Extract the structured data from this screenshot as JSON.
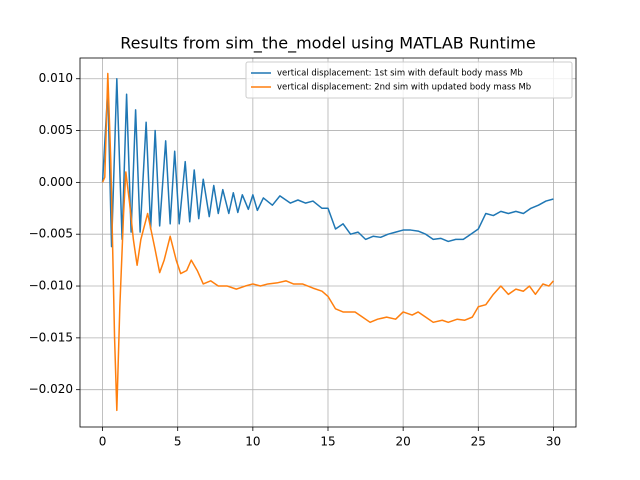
{
  "chart_data": {
    "type": "line",
    "title": "Results from sim_the_model using MATLAB Runtime",
    "xlim": [
      -1.5,
      31.5
    ],
    "xticks": [
      0,
      5,
      10,
      15,
      20,
      25,
      30
    ],
    "ylim": [
      -0.0236,
      0.012
    ],
    "yticks": [
      {
        "value": -0.02,
        "label": "−0.020"
      },
      {
        "value": -0.015,
        "label": "−0.015"
      },
      {
        "value": -0.01,
        "label": "−0.010"
      },
      {
        "value": -0.005,
        "label": "−0.005"
      },
      {
        "value": 0,
        "label": "0.000"
      },
      {
        "value": 0.005,
        "label": "0.005"
      },
      {
        "value": 0.01,
        "label": "0.010"
      }
    ],
    "grid": true,
    "legend": "upper right",
    "series": [
      {
        "name": "vertical displacement: 1st sim with default body mass Mb",
        "color": "#1f77b4",
        "x": [
          0,
          0.35,
          0.6,
          0.95,
          1.3,
          1.6,
          1.9,
          2.2,
          2.5,
          2.9,
          3.2,
          3.5,
          3.8,
          4.2,
          4.5,
          4.8,
          5.1,
          5.5,
          5.8,
          6.1,
          6.4,
          6.7,
          7.1,
          7.4,
          7.7,
          8.0,
          8.4,
          8.7,
          9.0,
          9.3,
          9.7,
          10.0,
          10.3,
          10.7,
          11.3,
          11.8,
          12.5,
          13,
          13.5,
          14,
          14.6,
          15,
          15.5,
          16,
          16.5,
          17,
          17.5,
          18,
          18.5,
          19,
          19.5,
          20,
          20.5,
          21,
          21.5,
          22,
          22.5,
          23,
          23.5,
          24,
          24.5,
          25,
          25.5,
          26,
          26.5,
          27,
          27.5,
          28,
          28.5,
          29,
          29.5,
          30
        ],
        "values": [
          0,
          0.009,
          -0.0062,
          0.01,
          -0.0055,
          0.0085,
          -0.0048,
          0.007,
          -0.0048,
          0.0058,
          -0.0045,
          0.005,
          -0.0042,
          0.004,
          -0.004,
          0.003,
          -0.004,
          0.002,
          -0.0038,
          0.0012,
          -0.0035,
          0.0003,
          -0.0033,
          -0.0003,
          -0.003,
          -0.0007,
          -0.003,
          -0.001,
          -0.0029,
          -0.0012,
          -0.0026,
          -0.0012,
          -0.0027,
          -0.0015,
          -0.0022,
          -0.0013,
          -0.002,
          -0.0017,
          -0.002,
          -0.0018,
          -0.0025,
          -0.0025,
          -0.0045,
          -0.004,
          -0.005,
          -0.0048,
          -0.0055,
          -0.0052,
          -0.0053,
          -0.005,
          -0.0048,
          -0.0046,
          -0.0046,
          -0.0047,
          -0.005,
          -0.0055,
          -0.0054,
          -0.0057,
          -0.0055,
          -0.0055,
          -0.005,
          -0.0045,
          -0.003,
          -0.0032,
          -0.0028,
          -0.003,
          -0.0028,
          -0.003,
          -0.0025,
          -0.0022,
          -0.0018,
          -0.0016
        ]
      },
      {
        "name": "vertical displacement: 2nd sim with updated body mass Mb",
        "color": "#ff7f0e",
        "x": [
          0,
          0.15,
          0.35,
          0.55,
          0.8,
          0.95,
          1.15,
          1.4,
          1.55,
          1.8,
          2.05,
          2.3,
          2.55,
          3.0,
          3.5,
          3.8,
          4.1,
          4.5,
          4.9,
          5.2,
          5.6,
          5.9,
          6.3,
          6.7,
          7.2,
          7.7,
          8.3,
          8.9,
          9.5,
          10,
          10.5,
          11,
          11.6,
          12.2,
          12.7,
          13.3,
          14,
          14.6,
          15,
          15.5,
          16,
          16.8,
          17.3,
          17.8,
          18.3,
          18.9,
          19.5,
          20,
          20.6,
          21,
          21.5,
          22,
          22.6,
          23,
          23.6,
          24.1,
          24.6,
          25,
          25.5,
          26,
          26.5,
          27,
          27.5,
          28,
          28.4,
          28.8,
          29.3,
          29.7,
          30
        ],
        "values": [
          0,
          0.0005,
          0.0105,
          0.002,
          -0.015,
          -0.022,
          -0.012,
          -0.003,
          0.001,
          -0.002,
          -0.0055,
          -0.008,
          -0.0055,
          -0.003,
          -0.0065,
          -0.0087,
          -0.0075,
          -0.0052,
          -0.0075,
          -0.0088,
          -0.0085,
          -0.0075,
          -0.0085,
          -0.0098,
          -0.0095,
          -0.01,
          -0.01,
          -0.0103,
          -0.01,
          -0.0098,
          -0.01,
          -0.0098,
          -0.0097,
          -0.0095,
          -0.0098,
          -0.0098,
          -0.0102,
          -0.0105,
          -0.011,
          -0.0122,
          -0.0125,
          -0.0125,
          -0.013,
          -0.0135,
          -0.0132,
          -0.013,
          -0.0132,
          -0.0125,
          -0.0128,
          -0.0125,
          -0.013,
          -0.0135,
          -0.0133,
          -0.0135,
          -0.0132,
          -0.0133,
          -0.013,
          -0.012,
          -0.0118,
          -0.0108,
          -0.01,
          -0.0108,
          -0.0103,
          -0.0105,
          -0.01,
          -0.0108,
          -0.0098,
          -0.01,
          -0.0095
        ]
      }
    ]
  }
}
